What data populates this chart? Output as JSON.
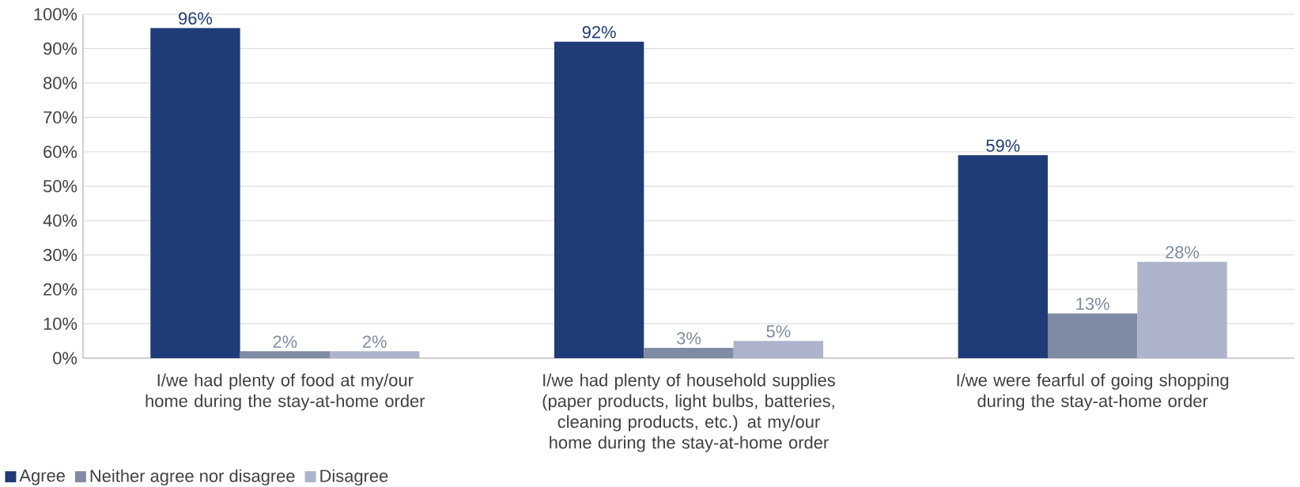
{
  "chart_data": {
    "type": "bar",
    "categories": [
      "I/we had plenty of food at my/our home during the stay-at-home order",
      "I/we had plenty of household supplies (paper products, light bulbs, batteries, cleaning products, etc.) at my/our home during the stay-at-home order",
      "I/we were fearful of going shopping during the stay-at-home order"
    ],
    "series": [
      {
        "name": "Agree",
        "color": "#1f3b78",
        "values": [
          96,
          92,
          59
        ],
        "value_labels": [
          "96%",
          "92%",
          "59%"
        ]
      },
      {
        "name": "Neither agree nor disagree",
        "color": "#7f8ba3",
        "values": [
          2,
          3,
          13
        ],
        "value_labels": [
          "2%",
          "3%",
          "13%"
        ]
      },
      {
        "name": "Disagree",
        "color": "#adb3cb",
        "values": [
          2,
          5,
          28
        ],
        "value_labels": [
          "2%",
          "5%",
          "28%"
        ]
      }
    ],
    "ylim": [
      0,
      100
    ],
    "yticks": [
      {
        "value": 0,
        "label": "0%"
      },
      {
        "value": 10,
        "label": "10%"
      },
      {
        "value": 20,
        "label": "20%"
      },
      {
        "value": 30,
        "label": "30%"
      },
      {
        "value": 40,
        "label": "40%"
      },
      {
        "value": 50,
        "label": "50%"
      },
      {
        "value": 60,
        "label": "60%"
      },
      {
        "value": 70,
        "label": "70%"
      },
      {
        "value": 80,
        "label": "80%"
      },
      {
        "value": 90,
        "label": "90%"
      },
      {
        "value": 100,
        "label": "100%"
      }
    ],
    "grid": "y",
    "legend": "bottom left"
  }
}
